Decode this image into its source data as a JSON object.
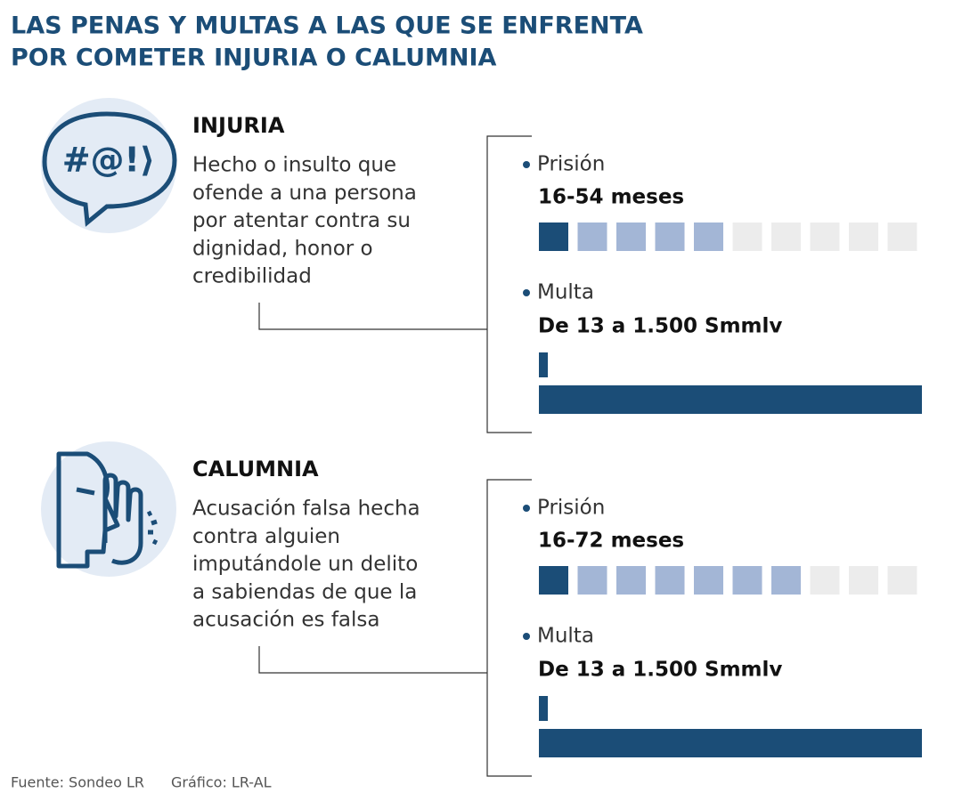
{
  "header": {
    "title": [
      "LAS PENAS Y MULTAS A LAS QUE SE ENFRENTA",
      "POR COMETER INJURIA O CALUMNIA"
    ]
  },
  "sections": [
    {
      "icon": "#@!⟩",
      "name": "INJURIA",
      "description": [
        "Hecho o insulto que",
        "ofende a una persona",
        "por atentar contra su",
        "dignidad, honor o",
        "credibilidad"
      ],
      "prison_label": "Prisión",
      "prison": "16-54 meses",
      "fine_label": "Multa",
      "fine": "De 13 a 1.500 Smmlv"
    },
    {
      "name": "CALUMNIA",
      "description": [
        "Acusación falsa hecha",
        "contra alguien",
        "imputándole un delito",
        "a sabiendas de que la",
        "acusación es falsa"
      ],
      "prison_label": "Prisión",
      "prison": "16-72 meses",
      "fine_label": "Multa",
      "fine": "De 13 a 1.500 Smmlv"
    }
  ],
  "footer": {
    "source": "Fuente: Sondeo LR",
    "credit": "Gráfico: LR-AL"
  }
}
